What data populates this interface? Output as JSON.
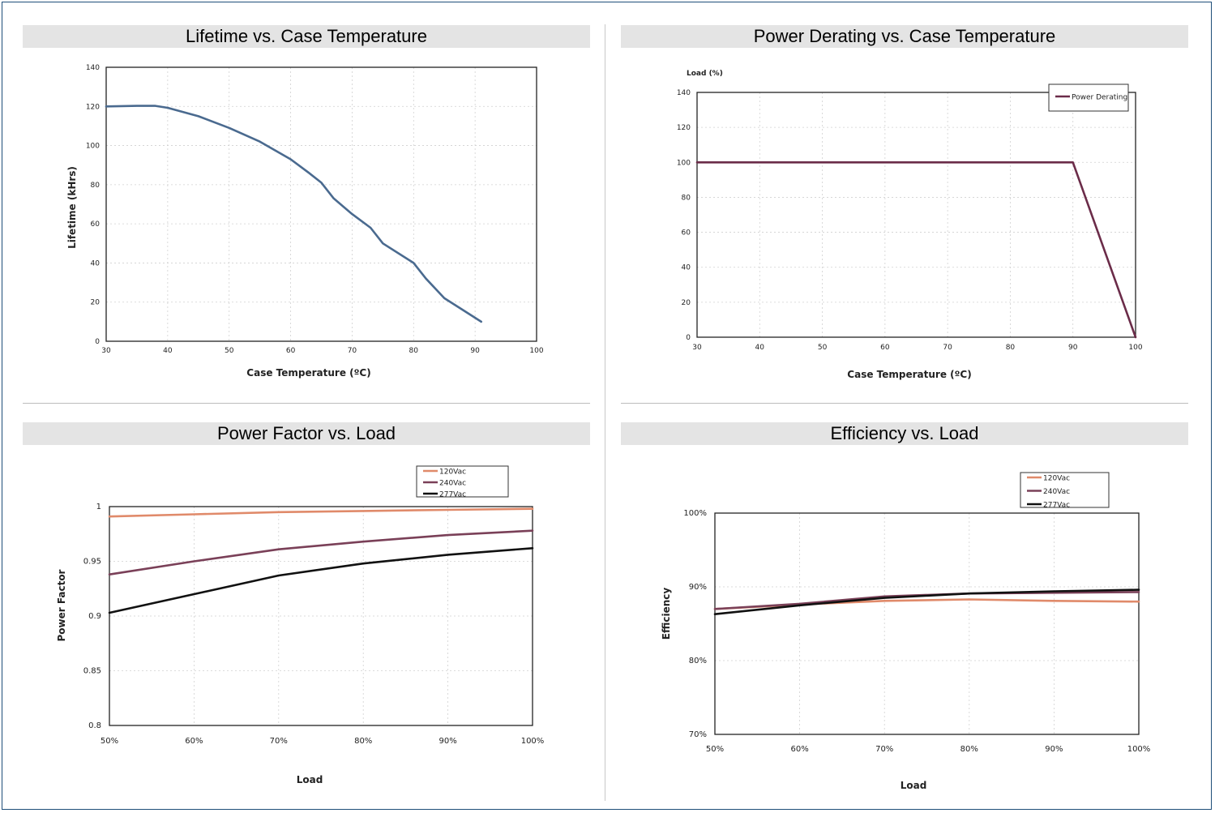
{
  "chart_data": [
    {
      "type": "line",
      "title": "Lifetime vs. Case Temperature",
      "xlabel": "Case Temperature (ºC)",
      "ylabel": "Lifetime (kHrs)",
      "xlim": [
        30,
        100
      ],
      "ylim": [
        0,
        140
      ],
      "x_ticks": [
        30,
        40,
        50,
        60,
        70,
        80,
        90,
        100
      ],
      "y_ticks": [
        0,
        20,
        40,
        60,
        80,
        100,
        120,
        140
      ],
      "grid": true,
      "series": [
        {
          "color": "#4a6a8f",
          "x": [
            30,
            35,
            38,
            40,
            45,
            50,
            55,
            60,
            63,
            65,
            67,
            70,
            73,
            75,
            80,
            82,
            85,
            88,
            91
          ],
          "y": [
            120,
            120.3,
            120.3,
            119.3,
            115,
            109,
            102,
            93,
            86,
            81,
            73,
            65,
            58,
            50,
            40,
            32,
            22,
            16,
            10
          ]
        }
      ]
    },
    {
      "type": "line",
      "title": "Power Derating vs. Case Temperature",
      "xlabel": "Case Temperature (ºC)",
      "ylabel": "Load (%)",
      "xlim": [
        30,
        100
      ],
      "ylim": [
        0,
        140
      ],
      "x_ticks": [
        30,
        40,
        50,
        60,
        70,
        80,
        90,
        100
      ],
      "y_ticks": [
        0,
        20,
        40,
        60,
        80,
        100,
        120,
        140
      ],
      "grid": true,
      "legend": "top-right",
      "series": [
        {
          "name": "Power Derating",
          "color": "#6b2c49",
          "x": [
            30,
            90,
            100
          ],
          "y": [
            100,
            100,
            0
          ]
        }
      ]
    },
    {
      "type": "line",
      "title": "Power Factor vs. Load",
      "xlabel": "Load",
      "ylabel": "Power Factor",
      "categories": [
        "50%",
        "60%",
        "70%",
        "80%",
        "90%",
        "100%"
      ],
      "x": [
        50,
        60,
        70,
        80,
        90,
        100
      ],
      "ylim": [
        0.8,
        1
      ],
      "y_ticks": [
        "0.8",
        "0.85",
        "0.9",
        "0.95",
        "1"
      ],
      "grid": true,
      "legend": "top-right",
      "series": [
        {
          "name": "120Vac",
          "color": "#e08a6a",
          "values": [
            0.991,
            0.993,
            0.995,
            0.996,
            0.997,
            0.998
          ]
        },
        {
          "name": "240Vac",
          "color": "#7a4058",
          "values": [
            0.938,
            0.95,
            0.961,
            0.968,
            0.974,
            0.978
          ]
        },
        {
          "name": "277Vac",
          "color": "#111111",
          "values": [
            0.903,
            0.92,
            0.937,
            0.948,
            0.956,
            0.962
          ]
        }
      ]
    },
    {
      "type": "line",
      "title": "Efficiency vs. Load",
      "xlabel": "Load",
      "ylabel": "Efficiency",
      "categories": [
        "50%",
        "60%",
        "70%",
        "80%",
        "90%",
        "100%"
      ],
      "x": [
        50,
        60,
        70,
        80,
        90,
        100
      ],
      "ylim": [
        70,
        100
      ],
      "y_ticks": [
        "70%",
        "80%",
        "90%",
        "100%"
      ],
      "grid": true,
      "legend": "top-right",
      "series": [
        {
          "name": "120Vac",
          "color": "#e08a6a",
          "values": [
            87.0,
            87.6,
            88.1,
            88.3,
            88.1,
            88.0
          ]
        },
        {
          "name": "240Vac",
          "color": "#7a4058",
          "values": [
            87.0,
            87.7,
            88.7,
            89.1,
            89.2,
            89.3
          ]
        },
        {
          "name": "277Vac",
          "color": "#111111",
          "values": [
            86.3,
            87.5,
            88.5,
            89.1,
            89.4,
            89.6
          ]
        }
      ]
    }
  ]
}
